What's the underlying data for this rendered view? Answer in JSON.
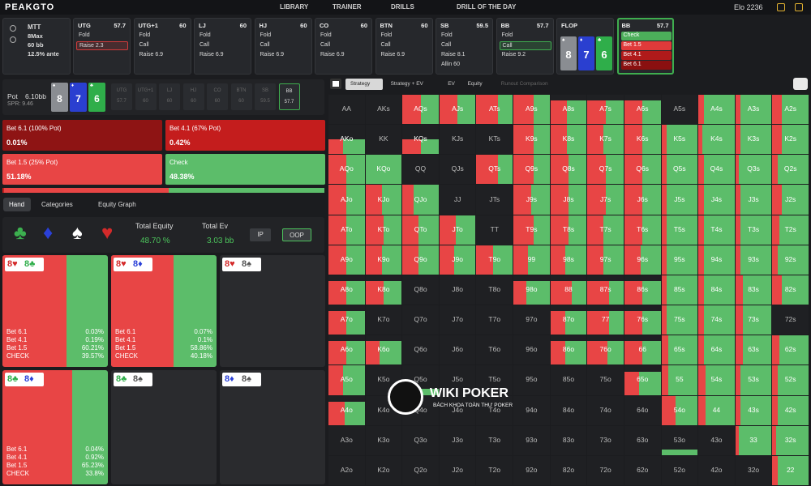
{
  "header": {
    "logo": "PEAKGTO",
    "nav": [
      "LIBRARY",
      "TRAINER",
      "DRILLS",
      "DRILL OF THE DAY"
    ],
    "elo": "Elo 2236"
  },
  "game": [
    "MTT",
    "8Max",
    "60 bb",
    "12.5% ante"
  ],
  "positions": [
    {
      "name": "UTG",
      "stack": "57.7",
      "actions": [
        "Fold",
        "Raise 2.3"
      ],
      "selected": 1,
      "selected_color": "#d23b3b"
    },
    {
      "name": "UTG+1",
      "stack": "60",
      "actions": [
        "Fold",
        "Call",
        "Raise 6.9"
      ],
      "selected": 0,
      "selected_color": "#555a60"
    },
    {
      "name": "LJ",
      "stack": "60",
      "actions": [
        "Fold",
        "Call",
        "Raise 6.9"
      ],
      "selected": 0,
      "selected_color": "#555a60"
    },
    {
      "name": "HJ",
      "stack": "60",
      "actions": [
        "Fold",
        "Call",
        "Raise 6.9"
      ],
      "selected": 0,
      "selected_color": "#555a60"
    },
    {
      "name": "CO",
      "stack": "60",
      "actions": [
        "Fold",
        "Call",
        "Raise 6.9"
      ],
      "selected": 0,
      "selected_color": "#555a60"
    },
    {
      "name": "BTN",
      "stack": "60",
      "actions": [
        "Fold",
        "Call",
        "Raise 6.9"
      ],
      "selected": 0,
      "selected_color": "#555a60"
    },
    {
      "name": "SB",
      "stack": "59.5",
      "actions": [
        "Fold",
        "Call",
        "Raise 8.1",
        "Allin 60"
      ],
      "selected": 0,
      "selected_color": "#555a60"
    },
    {
      "name": "BB",
      "stack": "57.7",
      "actions": [
        "Fold",
        "Call",
        "Raise 9.2"
      ],
      "selected": 1,
      "selected_color": "#3fae4f"
    }
  ],
  "flop": {
    "label": "FLOP",
    "cards": [
      {
        "rank": "8",
        "suit": "♠",
        "color": "#8a8d92"
      },
      {
        "rank": "7",
        "suit": "♦",
        "color": "#2a3fd0"
      },
      {
        "rank": "6",
        "suit": "♣",
        "color": "#2fae4a"
      }
    ]
  },
  "current": {
    "name": "BB",
    "stack": "57.7",
    "actions": [
      {
        "label": "Check",
        "color": "#4cae5a"
      },
      {
        "label": "Bet 1.5",
        "color": "#e03a3a"
      },
      {
        "label": "Bet 4.1",
        "color": "#b01a1a"
      },
      {
        "label": "Bet 6.1",
        "color": "#8a1010"
      }
    ]
  },
  "pot": {
    "label": "Pot",
    "value": "6.10bb",
    "spr": "SPR: 9.46",
    "mini": [
      {
        "name": "UTG",
        "stack": "57.7"
      },
      {
        "name": "UTG+1",
        "stack": "60"
      },
      {
        "name": "LJ",
        "stack": "60"
      },
      {
        "name": "HJ",
        "stack": "60"
      },
      {
        "name": "CO",
        "stack": "60"
      },
      {
        "name": "BTN",
        "stack": "60"
      },
      {
        "name": "SB",
        "stack": "59.5"
      },
      {
        "name": "BB",
        "stack": "57.7"
      }
    ]
  },
  "strategy": [
    {
      "label": "Bet 6.1 (100% Pot)",
      "freq": 0.01,
      "freq_label": "0.01%",
      "color": "#8e1414"
    },
    {
      "label": "Bet 4.1 (67% Pot)",
      "freq": 0.42,
      "freq_label": "0.42%",
      "color": "#c41d1d"
    },
    {
      "label": "Bet 1.5 (25% Pot)",
      "freq": 51.18,
      "freq_label": "51.18%",
      "color": "#e84545"
    },
    {
      "label": "Check",
      "freq": 48.38,
      "freq_label": "48.38%",
      "color": "#5cbd6a"
    }
  ],
  "tabs": {
    "items": [
      "Hand",
      "Categories",
      "Equity Graph"
    ],
    "selected": 0
  },
  "suits": [
    {
      "symbol": "♣",
      "color": "#3cb04f"
    },
    {
      "symbol": "♦",
      "color": "#2a40d8"
    },
    {
      "symbol": "♠",
      "color": "#ffffff"
    },
    {
      "symbol": "♥",
      "color": "#d42a2a"
    }
  ],
  "totals": [
    {
      "label": "Total Equity",
      "value": "48.70 %"
    },
    {
      "label": "Total Ev",
      "value": "3.03 bb"
    }
  ],
  "player": {
    "options": [
      "IP",
      "OOP"
    ],
    "selected": 1
  },
  "hands": [
    {
      "cards": [
        {
          "text": "8♥",
          "color": "#d42a2a"
        },
        {
          "text": "8♣",
          "color": "#2fae4a"
        }
      ],
      "lines": [
        {
          "label": "Bet 6.1",
          "freq": 0.03,
          "freq_label": "0.03%",
          "color": "#e84545"
        },
        {
          "label": "Bet 4.1",
          "freq": 0.19,
          "freq_label": "0.19%",
          "color": "#e84545"
        },
        {
          "label": "Bet 1.5",
          "freq": 60.21,
          "freq_label": "60.21%",
          "color": "#e84545"
        },
        {
          "label": "CHECK",
          "freq": 39.57,
          "freq_label": "39.57%",
          "color": "#5cbd6a"
        }
      ]
    },
    {
      "cards": [
        {
          "text": "8♥",
          "color": "#d42a2a"
        },
        {
          "text": "8♦",
          "color": "#2a40d8"
        }
      ],
      "lines": [
        {
          "label": "Bet 6.1",
          "freq": 0.07,
          "freq_label": "0.07%",
          "color": "#e84545"
        },
        {
          "label": "Bet 4.1",
          "freq": 0.1,
          "freq_label": "0.1%",
          "color": "#e84545"
        },
        {
          "label": "Bet 1.5",
          "freq": 58.86,
          "freq_label": "58.86%",
          "color": "#e84545"
        },
        {
          "label": "CHECK",
          "freq": 40.18,
          "freq_label": "40.18%",
          "color": "#5cbd6a"
        }
      ]
    },
    {
      "cards": [
        {
          "text": "8♥",
          "color": "#d42a2a"
        },
        {
          "text": "8♠",
          "color": "#555"
        }
      ],
      "lines": []
    },
    {
      "cards": [
        {
          "text": "8♣",
          "color": "#2fae4a"
        },
        {
          "text": "8♦",
          "color": "#2a40d8"
        }
      ],
      "lines": [
        {
          "label": "Bet 6.1",
          "freq": 0.04,
          "freq_label": "0.04%",
          "color": "#e84545"
        },
        {
          "label": "Bet 4.1",
          "freq": 0.92,
          "freq_label": "0.92%",
          "color": "#e84545"
        },
        {
          "label": "Bet 1.5",
          "freq": 65.23,
          "freq_label": "65.23%",
          "color": "#e84545"
        },
        {
          "label": "CHECK",
          "freq": 33.8,
          "freq_label": "33.8%",
          "color": "#5cbd6a"
        }
      ]
    },
    {
      "cards": [
        {
          "text": "8♣",
          "color": "#2fae4a"
        },
        {
          "text": "8♠",
          "color": "#555"
        }
      ],
      "lines": []
    },
    {
      "cards": [
        {
          "text": "8♦",
          "color": "#2a40d8"
        },
        {
          "text": "8♠",
          "color": "#555"
        }
      ],
      "lines": []
    }
  ],
  "matrix": {
    "tabs": [
      "Strategy",
      "Strategy + EV",
      "EV",
      "Equity",
      "Runout Comparison"
    ],
    "selected": 0,
    "bet_color": "#e84545",
    "check_color": "#5cbd6a",
    "rows": [
      {
        "labels": [
          "AA",
          "AKs",
          "AQs",
          "AJs",
          "ATs",
          "A9s",
          "A8s",
          "A7s",
          "A6s",
          "A5s",
          "A4s",
          "A3s",
          "A2s"
        ],
        "bet": [
          0,
          0,
          50,
          50,
          60,
          55,
          45,
          50,
          50,
          0,
          15,
          15,
          25
        ],
        "freq": [
          0,
          0,
          100,
          100,
          100,
          100,
          80,
          80,
          80,
          0,
          100,
          100,
          100
        ]
      },
      {
        "labels": [
          "AKo",
          "KK",
          "KQs",
          "KJs",
          "KTs",
          "K9s",
          "K8s",
          "K7s",
          "K6s",
          "K5s",
          "K4s",
          "K3s",
          "K2s"
        ],
        "bet": [
          40,
          0,
          50,
          0,
          0,
          55,
          45,
          45,
          50,
          15,
          10,
          15,
          25
        ],
        "freq": [
          50,
          0,
          50,
          0,
          0,
          100,
          100,
          100,
          100,
          100,
          100,
          100,
          100
        ]
      },
      {
        "labels": [
          "AQo",
          "KQo",
          "QQ",
          "QJs",
          "QTs",
          "Q9s",
          "Q8s",
          "Q7s",
          "Q6s",
          "Q5s",
          "Q4s",
          "Q3s",
          "Q2s"
        ],
        "bet": [
          50,
          0,
          0,
          0,
          60,
          55,
          50,
          50,
          50,
          15,
          15,
          10,
          15
        ],
        "freq": [
          100,
          100,
          0,
          0,
          100,
          100,
          100,
          100,
          100,
          100,
          100,
          100,
          100
        ]
      },
      {
        "labels": [
          "AJo",
          "KJo",
          "QJo",
          "JJ",
          "JTs",
          "J9s",
          "J8s",
          "J7s",
          "J6s",
          "J5s",
          "J4s",
          "J3s",
          "J2s"
        ],
        "bet": [
          50,
          45,
          30,
          0,
          0,
          50,
          50,
          50,
          50,
          15,
          15,
          15,
          25
        ],
        "freq": [
          100,
          100,
          100,
          0,
          0,
          100,
          100,
          100,
          100,
          100,
          100,
          100,
          100
        ]
      },
      {
        "labels": [
          "ATo",
          "KTo",
          "QTo",
          "JTo",
          "TT",
          "T9s",
          "T8s",
          "T7s",
          "T6s",
          "T5s",
          "T4s",
          "T3s",
          "T2s"
        ],
        "bet": [
          50,
          50,
          45,
          45,
          0,
          55,
          50,
          45,
          50,
          15,
          15,
          15,
          20
        ],
        "freq": [
          100,
          100,
          100,
          100,
          0,
          100,
          100,
          100,
          100,
          100,
          100,
          100,
          100
        ]
      },
      {
        "labels": [
          "A9o",
          "K9o",
          "Q9o",
          "J9o",
          "T9o",
          "99",
          "98s",
          "97s",
          "96s",
          "95s",
          "94s",
          "93s",
          "92s"
        ],
        "bet": [
          50,
          45,
          45,
          40,
          45,
          40,
          40,
          45,
          45,
          15,
          15,
          15,
          15
        ],
        "freq": [
          100,
          100,
          100,
          100,
          100,
          100,
          100,
          100,
          100,
          100,
          100,
          100,
          100
        ]
      },
      {
        "labels": [
          "A8o",
          "K8o",
          "Q8o",
          "J8o",
          "T8o",
          "98o",
          "88",
          "87s",
          "86s",
          "85s",
          "84s",
          "83s",
          "82s"
        ],
        "bet": [
          50,
          50,
          0,
          0,
          0,
          35,
          60,
          60,
          50,
          15,
          15,
          20,
          25
        ],
        "freq": [
          80,
          80,
          0,
          0,
          0,
          80,
          80,
          80,
          80,
          100,
          100,
          100,
          100
        ]
      },
      {
        "labels": [
          "A7o",
          "K7o",
          "Q7o",
          "J7o",
          "T7o",
          "97o",
          "87o",
          "77",
          "76s",
          "75s",
          "74s",
          "73s",
          "72s"
        ],
        "bet": [
          50,
          0,
          0,
          0,
          0,
          0,
          40,
          60,
          50,
          15,
          15,
          20,
          0
        ],
        "freq": [
          80,
          0,
          0,
          0,
          0,
          0,
          80,
          80,
          80,
          100,
          100,
          100,
          0
        ]
      },
      {
        "labels": [
          "A6o",
          "K6o",
          "Q6o",
          "J6o",
          "T6o",
          "96o",
          "86o",
          "76o",
          "66",
          "65s",
          "64s",
          "63s",
          "62s"
        ],
        "bet": [
          50,
          40,
          0,
          0,
          0,
          0,
          40,
          55,
          50,
          20,
          15,
          20,
          20
        ],
        "freq": [
          80,
          80,
          0,
          0,
          0,
          0,
          80,
          80,
          80,
          100,
          100,
          100,
          100
        ]
      },
      {
        "labels": [
          "A5o",
          "K5o",
          "Q5o",
          "J5o",
          "T5o",
          "95o",
          "85o",
          "75o",
          "65o",
          "55",
          "54s",
          "53s",
          "52s"
        ],
        "bet": [
          40,
          0,
          0,
          0,
          0,
          0,
          0,
          0,
          40,
          20,
          20,
          15,
          15
        ],
        "freq": [
          100,
          0,
          20,
          0,
          0,
          0,
          0,
          0,
          80,
          100,
          100,
          100,
          100
        ]
      },
      {
        "labels": [
          "A4o",
          "K4o",
          "Q4o",
          "J4o",
          "T4o",
          "94o",
          "84o",
          "74o",
          "64o",
          "54o",
          "44",
          "43s",
          "42s"
        ],
        "bet": [
          45,
          0,
          0,
          0,
          0,
          0,
          0,
          0,
          0,
          40,
          20,
          15,
          15
        ],
        "freq": [
          80,
          0,
          0,
          0,
          0,
          0,
          0,
          0,
          0,
          100,
          100,
          100,
          100
        ]
      },
      {
        "labels": [
          "A3o",
          "K3o",
          "Q3o",
          "J3o",
          "T3o",
          "93o",
          "83o",
          "73o",
          "63o",
          "53o",
          "43o",
          "33",
          "32s"
        ],
        "bet": [
          0,
          0,
          0,
          0,
          0,
          0,
          0,
          0,
          0,
          0,
          0,
          10,
          10
        ],
        "freq": [
          0,
          0,
          0,
          0,
          0,
          0,
          0,
          0,
          0,
          20,
          0,
          100,
          100
        ]
      },
      {
        "labels": [
          "A2o",
          "K2o",
          "Q2o",
          "J2o",
          "T2o",
          "92o",
          "82o",
          "72o",
          "62o",
          "52o",
          "42o",
          "32o",
          "22"
        ],
        "bet": [
          0,
          0,
          0,
          0,
          0,
          0,
          0,
          0,
          0,
          0,
          0,
          0,
          15
        ],
        "freq": [
          0,
          0,
          0,
          0,
          0,
          0,
          0,
          0,
          0,
          0,
          0,
          0,
          100
        ]
      }
    ]
  },
  "watermark": {
    "title": "WIKI POKER",
    "subtitle": "BÁCH KHOA TOÀN THƯ POKER"
  }
}
